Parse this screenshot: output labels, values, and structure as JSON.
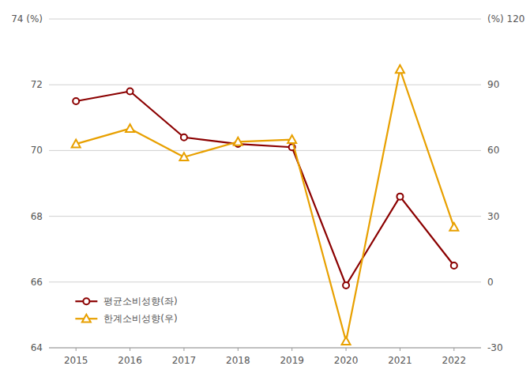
{
  "chart_data": {
    "type": "line",
    "x": [
      2015,
      2016,
      2017,
      2018,
      2019,
      2020,
      2021,
      2022
    ],
    "xlim": [
      2014.5,
      2022.5
    ],
    "xticks": [
      2015,
      2016,
      2017,
      2018,
      2019,
      2020,
      2021,
      2022
    ],
    "ylim": [
      64,
      74
    ],
    "yticks": [
      64,
      66,
      68,
      70,
      72,
      {
        "value": 74,
        "label": "74 (%)"
      }
    ],
    "y2lim": [
      -30,
      120
    ],
    "y2ticks": [
      -30,
      0,
      30,
      60,
      90,
      {
        "value": 120,
        "label": "(%) 120"
      }
    ],
    "grid": true,
    "legend": "lower left",
    "series": [
      {
        "name": "평균소비성향(좌)",
        "color": "#8B0000",
        "marker": "circle",
        "values": [
          71.5,
          71.8,
          70.4,
          70.2,
          70.1,
          65.9,
          68.6,
          66.5
        ]
      },
      {
        "name": "한계소비성향(우)",
        "color": "#E8A000",
        "marker": "triangle",
        "axis": "y2",
        "values": [
          63.0,
          70.0,
          57.0,
          64.0,
          65.0,
          -27.0,
          97.0,
          25.0
        ]
      }
    ]
  }
}
